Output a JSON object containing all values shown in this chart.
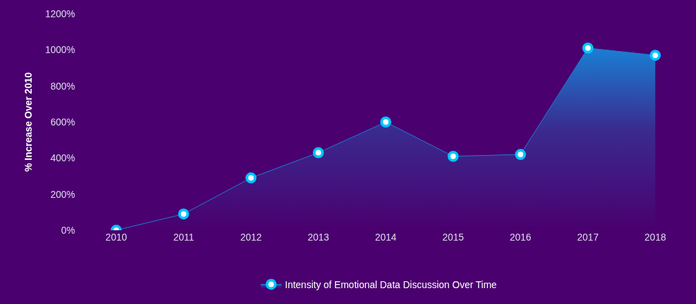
{
  "chart_data": {
    "type": "area",
    "ylabel": "% Increase Over 2010",
    "categories": [
      "2010",
      "2011",
      "2012",
      "2013",
      "2014",
      "2015",
      "2016",
      "2017",
      "2018"
    ],
    "series": [
      {
        "name": "Intensity of Emotional Data Discussion Over Time",
        "color": "#1a7fd4",
        "values": [
          0,
          90,
          290,
          430,
          600,
          410,
          420,
          1010,
          970
        ]
      }
    ],
    "ylim": [
      0,
      1200
    ],
    "yticks": [
      {
        "value": 0,
        "label": "0%"
      },
      {
        "value": 200,
        "label": "200%"
      },
      {
        "value": 400,
        "label": "400%"
      },
      {
        "value": 600,
        "label": "600%"
      },
      {
        "value": 800,
        "label": "800%"
      },
      {
        "value": 1000,
        "label": "1000%"
      },
      {
        "value": 1200,
        "label": "1200%"
      }
    ],
    "marker": "circle",
    "legend": "bottom",
    "grid": false
  }
}
